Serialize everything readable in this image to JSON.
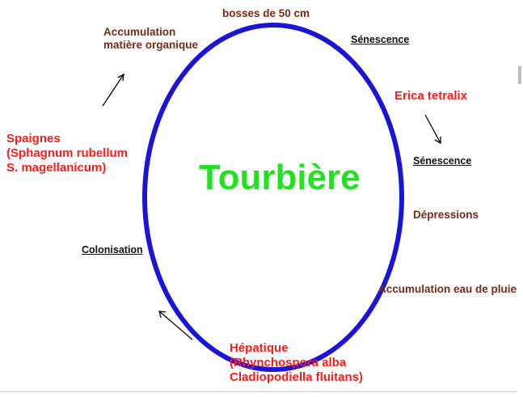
{
  "center": "Tourbière",
  "colors": {
    "cycle": "#1a14d6",
    "title": "#22e022",
    "species": "#ff1a1a",
    "process": "#7a2a14",
    "stage": "#111111"
  },
  "labels": {
    "top": "bosses de 50 cm",
    "senescence_1": "Sénescence",
    "erica": "Erica tetralix",
    "senescence_2": "Sénescence",
    "depressions": "Dépressions",
    "accumulation_eau": "Accumulation eau de pluie",
    "hepatique_1": "Hépatique",
    "hepatique_2": "(Rhynchospora alba",
    "hepatique_3": "Cladiopodiella fluitans)",
    "colonisation": "Colonisation",
    "spaignes_1": "Spaignes",
    "spaignes_2": "(Sphagnum rubellum",
    "spaignes_3": "S. magellanicum)",
    "accum_mo_1": "Accumulation",
    "accum_mo_2": "matière organique"
  }
}
